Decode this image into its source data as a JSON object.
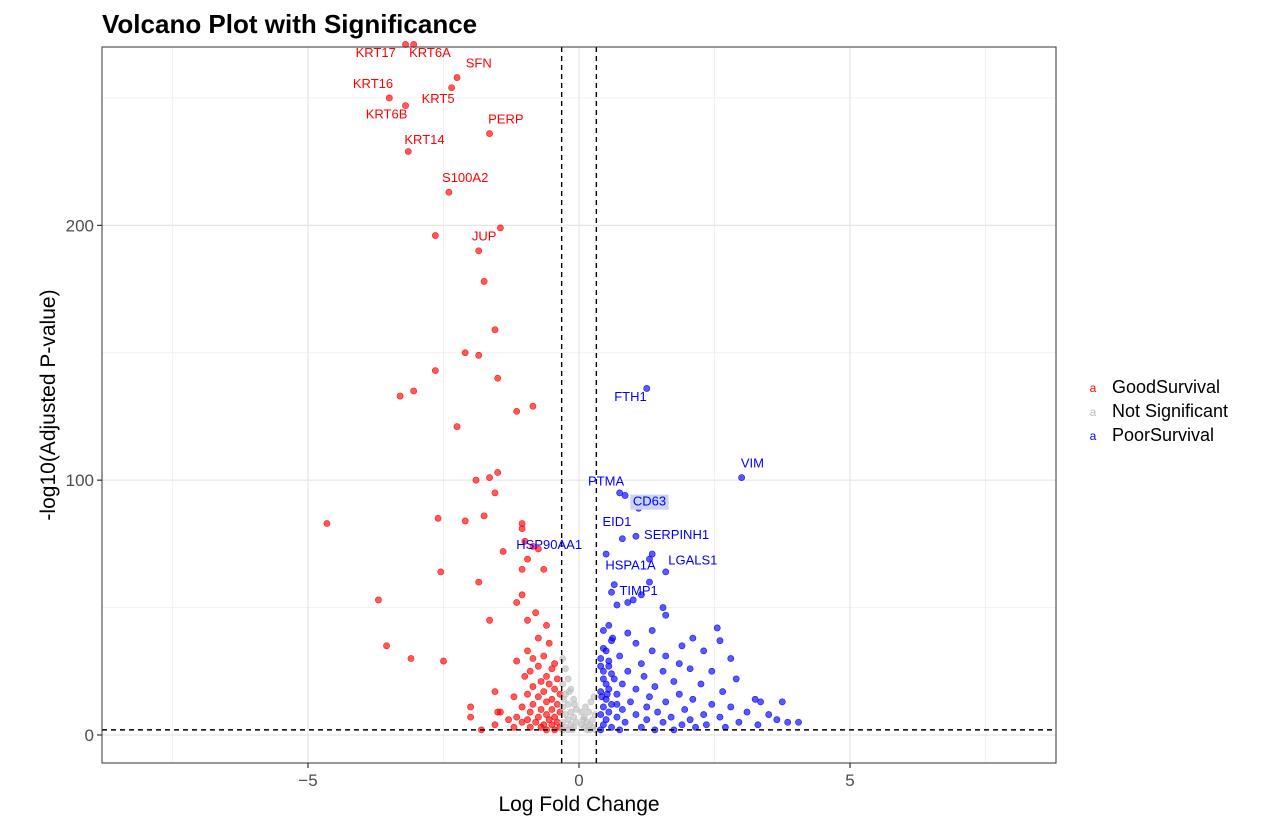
{
  "chart_data": {
    "type": "scatter",
    "title": "Volcano Plot with Significance",
    "xlabel": "Log Fold Change",
    "ylabel": "-log10(Adjusted P-value)",
    "xlim": [
      -8.8,
      8.8
    ],
    "ylim": [
      -11,
      270
    ],
    "x_ticks": [
      -5,
      0,
      5
    ],
    "x_tick_labels": [
      "−5",
      "0",
      "5"
    ],
    "y_ticks": [
      0,
      100,
      200
    ],
    "y_tick_labels": [
      "0",
      "100",
      "200"
    ],
    "grid": true,
    "legend_position": "right",
    "thresholds": {
      "logfc": [
        -0.32,
        0.32
      ],
      "neglog10_padj": 2
    },
    "colors": {
      "GoodSurvival": "#ff0000",
      "Not Significant": "#bebebe",
      "PoorSurvival": "#0000ff",
      "threshold_line": "#000000",
      "highlight": "#c9d3f2"
    },
    "series": [
      {
        "name": "GoodSurvival",
        "points": [
          [
            -3.2,
            271
          ],
          [
            -3.05,
            271
          ],
          [
            -2.25,
            258
          ],
          [
            -2.35,
            254
          ],
          [
            -3.5,
            250
          ],
          [
            -3.2,
            247
          ],
          [
            -1.65,
            236
          ],
          [
            -3.15,
            229
          ],
          [
            -2.4,
            213
          ],
          [
            -1.45,
            199
          ],
          [
            -2.65,
            196
          ],
          [
            -1.85,
            190
          ],
          [
            -1.75,
            178
          ],
          [
            -1.55,
            159
          ],
          [
            -2.1,
            150
          ],
          [
            -1.85,
            149
          ],
          [
            -2.65,
            143
          ],
          [
            -1.5,
            140
          ],
          [
            -3.05,
            135
          ],
          [
            -3.3,
            133
          ],
          [
            -0.85,
            129
          ],
          [
            -1.15,
            127
          ],
          [
            -2.25,
            121
          ],
          [
            -1.5,
            103
          ],
          [
            -1.65,
            101
          ],
          [
            -1.9,
            100
          ],
          [
            -1.55,
            95
          ],
          [
            -1.75,
            86
          ],
          [
            -2.6,
            85
          ],
          [
            -2.1,
            84
          ],
          [
            -4.65,
            83
          ],
          [
            -1.05,
            83
          ],
          [
            -1.05,
            81
          ],
          [
            -1.0,
            76
          ],
          [
            -0.85,
            74
          ],
          [
            -0.75,
            73
          ],
          [
            -1.4,
            72
          ],
          [
            -0.95,
            69
          ],
          [
            -1.05,
            65
          ],
          [
            -0.65,
            65
          ],
          [
            -2.55,
            64
          ],
          [
            -1.85,
            60
          ],
          [
            -1.05,
            55
          ],
          [
            -3.7,
            53
          ],
          [
            -1.15,
            52
          ],
          [
            -0.8,
            48
          ],
          [
            -0.95,
            45
          ],
          [
            -0.6,
            43
          ],
          [
            -1.65,
            45
          ],
          [
            -3.55,
            35
          ],
          [
            -0.75,
            38
          ],
          [
            -0.55,
            36
          ],
          [
            -0.95,
            33
          ],
          [
            -3.1,
            30
          ],
          [
            -2.5,
            29
          ],
          [
            -0.65,
            31
          ],
          [
            -0.85,
            30
          ],
          [
            -1.15,
            29
          ],
          [
            -0.45,
            28
          ],
          [
            -0.75,
            27
          ],
          [
            -0.5,
            26
          ],
          [
            -0.9,
            25
          ],
          [
            -0.6,
            23
          ],
          [
            -1.0,
            23
          ],
          [
            -0.4,
            22
          ],
          [
            -0.7,
            21
          ],
          [
            -0.55,
            20
          ],
          [
            -0.85,
            19
          ],
          [
            -0.45,
            18
          ],
          [
            -0.65,
            17
          ],
          [
            -0.95,
            16
          ],
          [
            -0.35,
            16
          ],
          [
            -0.75,
            15
          ],
          [
            -1.2,
            15
          ],
          [
            -0.5,
            14
          ],
          [
            -1.55,
            17
          ],
          [
            -0.6,
            13
          ],
          [
            -0.85,
            12
          ],
          [
            -0.4,
            12
          ],
          [
            -1.05,
            11
          ],
          [
            -0.7,
            10
          ],
          [
            -0.5,
            10
          ],
          [
            -1.45,
            9
          ],
          [
            -0.9,
            9
          ],
          [
            -0.35,
            9
          ],
          [
            -2.0,
            11
          ],
          [
            -1.5,
            9
          ],
          [
            -0.6,
            8
          ],
          [
            -0.75,
            7
          ],
          [
            -1.15,
            7
          ],
          [
            -0.45,
            7
          ],
          [
            -2.0,
            7
          ],
          [
            -0.95,
            6
          ],
          [
            -0.55,
            6
          ],
          [
            -1.3,
            6
          ],
          [
            -0.8,
            5
          ],
          [
            -0.4,
            5
          ],
          [
            -1.05,
            5
          ],
          [
            -0.65,
            4
          ],
          [
            -1.55,
            4
          ],
          [
            -0.5,
            4
          ],
          [
            -0.9,
            3
          ],
          [
            -0.35,
            3
          ],
          [
            -1.8,
            2
          ],
          [
            -0.7,
            3
          ],
          [
            -1.2,
            3
          ],
          [
            -0.45,
            2
          ],
          [
            -0.6,
            2
          ]
        ]
      },
      {
        "name": "Not Significant",
        "points": [
          [
            -0.3,
            30
          ],
          [
            -0.25,
            26
          ],
          [
            -0.2,
            22
          ],
          [
            -0.3,
            20
          ],
          [
            -0.15,
            18
          ],
          [
            -0.25,
            16
          ],
          [
            -0.1,
            14
          ],
          [
            -0.2,
            12
          ],
          [
            -0.3,
            11
          ],
          [
            -0.05,
            10
          ],
          [
            -0.15,
            9
          ],
          [
            -0.25,
            8
          ],
          [
            -0.1,
            7
          ],
          [
            -0.2,
            6
          ],
          [
            -0.3,
            5
          ],
          [
            -0.05,
            5
          ],
          [
            -0.15,
            4
          ],
          [
            -0.25,
            3
          ],
          [
            -0.1,
            3
          ],
          [
            -0.2,
            2
          ],
          [
            -0.3,
            2
          ],
          [
            -0.28,
            14
          ],
          [
            -0.18,
            17
          ],
          [
            -0.08,
            12
          ],
          [
            0.05,
            9
          ],
          [
            0.1,
            7
          ],
          [
            0.15,
            5
          ],
          [
            0.2,
            4
          ],
          [
            0.25,
            6
          ],
          [
            0.3,
            8
          ],
          [
            0.05,
            4
          ],
          [
            0.1,
            3
          ],
          [
            0.15,
            2
          ],
          [
            0.2,
            2
          ],
          [
            0.25,
            3
          ],
          [
            0.3,
            2
          ],
          [
            0.12,
            11
          ],
          [
            0.22,
            13
          ],
          [
            0.28,
            15
          ],
          [
            0.08,
            6
          ],
          [
            0.18,
            9
          ],
          [
            -0.12,
            2
          ]
        ]
      },
      {
        "name": "PoorSurvival",
        "points": [
          [
            1.25,
            136
          ],
          [
            3.0,
            101
          ],
          [
            0.75,
            95
          ],
          [
            0.85,
            94
          ],
          [
            1.1,
            89
          ],
          [
            1.05,
            78
          ],
          [
            0.8,
            77
          ],
          [
            1.35,
            71
          ],
          [
            1.3,
            69
          ],
          [
            0.5,
            71
          ],
          [
            1.6,
            64
          ],
          [
            1.3,
            60
          ],
          [
            0.65,
            59
          ],
          [
            0.6,
            56
          ],
          [
            1.0,
            53
          ],
          [
            1.15,
            55
          ],
          [
            0.9,
            52
          ],
          [
            0.7,
            51
          ],
          [
            1.55,
            50
          ],
          [
            1.6,
            47
          ],
          [
            2.55,
            42
          ],
          [
            0.55,
            43
          ],
          [
            0.45,
            41
          ],
          [
            0.9,
            40
          ],
          [
            1.35,
            41
          ],
          [
            2.1,
            38
          ],
          [
            2.6,
            37
          ],
          [
            0.6,
            37
          ],
          [
            1.05,
            36
          ],
          [
            1.9,
            35
          ],
          [
            0.45,
            34
          ],
          [
            1.35,
            33
          ],
          [
            2.3,
            33
          ],
          [
            0.75,
            31
          ],
          [
            1.6,
            31
          ],
          [
            0.55,
            29
          ],
          [
            2.8,
            30
          ],
          [
            1.15,
            28
          ],
          [
            1.85,
            28
          ],
          [
            0.4,
            27
          ],
          [
            2.05,
            26
          ],
          [
            0.9,
            25
          ],
          [
            1.55,
            25
          ],
          [
            2.45,
            25
          ],
          [
            0.6,
            24
          ],
          [
            1.2,
            23
          ],
          [
            2.9,
            22
          ],
          [
            0.45,
            22
          ],
          [
            1.75,
            21
          ],
          [
            0.8,
            20
          ],
          [
            2.25,
            20
          ],
          [
            1.4,
            19
          ],
          [
            0.55,
            18
          ],
          [
            1.05,
            18
          ],
          [
            2.65,
            17
          ],
          [
            0.4,
            17
          ],
          [
            1.85,
            16
          ],
          [
            0.7,
            16
          ],
          [
            1.3,
            15
          ],
          [
            3.25,
            14
          ],
          [
            2.1,
            14
          ],
          [
            0.5,
            14
          ],
          [
            3.35,
            13
          ],
          [
            0.95,
            13
          ],
          [
            1.6,
            13
          ],
          [
            2.45,
            12
          ],
          [
            0.6,
            12
          ],
          [
            3.75,
            13
          ],
          [
            1.25,
            11
          ],
          [
            2.8,
            11
          ],
          [
            0.45,
            11
          ],
          [
            1.95,
            10
          ],
          [
            0.8,
            10
          ],
          [
            3.1,
            9
          ],
          [
            1.45,
            9
          ],
          [
            0.55,
            9
          ],
          [
            2.3,
            8
          ],
          [
            3.5,
            8
          ],
          [
            1.05,
            8
          ],
          [
            0.4,
            8
          ],
          [
            2.6,
            7
          ],
          [
            1.7,
            7
          ],
          [
            3.65,
            6
          ],
          [
            0.7,
            7
          ],
          [
            2.05,
            6
          ],
          [
            1.25,
            6
          ],
          [
            2.95,
            5
          ],
          [
            0.5,
            6
          ],
          [
            3.85,
            5
          ],
          [
            4.05,
            5
          ],
          [
            1.55,
            5
          ],
          [
            2.35,
            4
          ],
          [
            0.85,
            5
          ],
          [
            3.3,
            4
          ],
          [
            1.9,
            4
          ],
          [
            0.45,
            4
          ],
          [
            2.7,
            3
          ],
          [
            1.15,
            3
          ],
          [
            0.6,
            3
          ],
          [
            2.15,
            3
          ],
          [
            0.4,
            2
          ],
          [
            1.4,
            2
          ],
          [
            0.75,
            2
          ],
          [
            1.75,
            2
          ],
          [
            0.5,
            20
          ],
          [
            0.45,
            25
          ],
          [
            0.55,
            27
          ],
          [
            0.65,
            22
          ],
          [
            0.4,
            30
          ],
          [
            0.5,
            33
          ],
          [
            0.62,
            38
          ],
          [
            0.42,
            15
          ],
          [
            0.52,
            16
          ],
          [
            0.7,
            12
          ]
        ]
      }
    ],
    "labels": [
      {
        "text": "KRT17",
        "series": "GoodSurvival",
        "x": -3.75,
        "y": 266
      },
      {
        "text": "KRT6A",
        "series": "GoodSurvival",
        "x": -2.75,
        "y": 266
      },
      {
        "text": "SFN",
        "series": "GoodSurvival",
        "x": -1.85,
        "y": 262
      },
      {
        "text": "KRT16",
        "series": "GoodSurvival",
        "x": -3.8,
        "y": 254
      },
      {
        "text": "KRT5",
        "series": "GoodSurvival",
        "x": -2.6,
        "y": 248
      },
      {
        "text": "KRT6B",
        "series": "GoodSurvival",
        "x": -3.55,
        "y": 242
      },
      {
        "text": "PERP",
        "series": "GoodSurvival",
        "x": -1.35,
        "y": 240
      },
      {
        "text": "KRT14",
        "series": "GoodSurvival",
        "x": -2.85,
        "y": 232
      },
      {
        "text": "S100A2",
        "series": "GoodSurvival",
        "x": -2.1,
        "y": 217
      },
      {
        "text": "JUP",
        "series": "GoodSurvival",
        "x": -1.75,
        "y": 194
      },
      {
        "text": "FTH1",
        "series": "PoorSurvival",
        "x": 0.95,
        "y": 131
      },
      {
        "text": "VIM",
        "series": "PoorSurvival",
        "x": 3.2,
        "y": 105
      },
      {
        "text": "PTMA",
        "series": "PoorSurvival",
        "x": 0.5,
        "y": 98
      },
      {
        "text": "CD63",
        "series": "PoorSurvival",
        "x": 1.3,
        "y": 90,
        "highlight": true
      },
      {
        "text": "EID1",
        "series": "PoorSurvival",
        "x": 0.7,
        "y": 82
      },
      {
        "text": "SERPINH1",
        "series": "PoorSurvival",
        "x": 1.8,
        "y": 77
      },
      {
        "text": "HSP90AA1",
        "series": "PoorSurvival",
        "x": -0.55,
        "y": 73
      },
      {
        "text": "HSPA1A",
        "series": "PoorSurvival",
        "x": 0.95,
        "y": 65
      },
      {
        "text": "LGALS1",
        "series": "PoorSurvival",
        "x": 2.1,
        "y": 67
      },
      {
        "text": "TIMP1",
        "series": "PoorSurvival",
        "x": 1.1,
        "y": 55
      }
    ]
  },
  "legend": {
    "glyph": "a",
    "items": [
      {
        "label": "GoodSurvival",
        "color": "#ff0000"
      },
      {
        "label": "Not Significant",
        "color": "#bebebe"
      },
      {
        "label": "PoorSurvival",
        "color": "#0000ff"
      }
    ]
  }
}
